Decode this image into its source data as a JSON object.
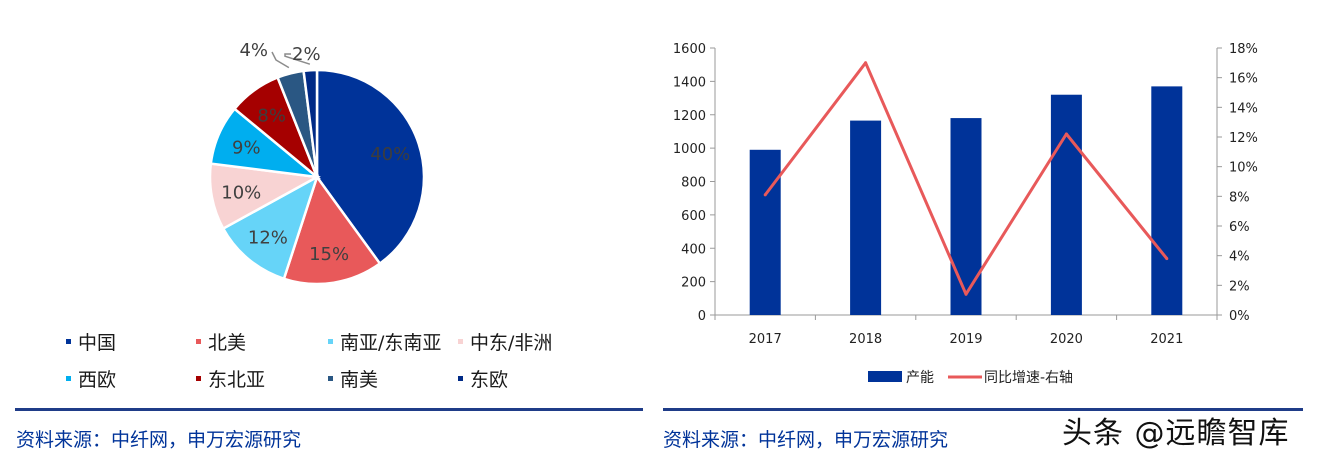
{
  "charts": {
    "left_source": "资料来源：中纤网，申万宏源研究",
    "right_source": "资料来源：中纤网，申万宏源研究",
    "watermark": "头条 @远瞻智库"
  },
  "chart_data": [
    {
      "type": "pie",
      "slices": [
        {
          "label": "中国",
          "value": 40,
          "value_label": "40%",
          "color": "#003399"
        },
        {
          "label": "北美",
          "value": 15,
          "value_label": "15%",
          "color": "#e8595a"
        },
        {
          "label": "南亚/东南亚",
          "value": 12,
          "value_label": "12%",
          "color": "#66d4f8"
        },
        {
          "label": "中东/非洲",
          "value": 10,
          "value_label": "10%",
          "color": "#f8d3d3"
        },
        {
          "label": "西欧",
          "value": 9,
          "value_label": "9%",
          "color": "#00aeef"
        },
        {
          "label": "东北亚",
          "value": 8,
          "value_label": "8%",
          "color": "#a50000"
        },
        {
          "label": "南美",
          "value": 4,
          "value_label": "4%",
          "color": "#2a5783"
        },
        {
          "label": "东欧",
          "value": 2,
          "value_label": "2%",
          "color": "#002a86"
        }
      ],
      "legend_position": "bottom"
    },
    {
      "type": "bar",
      "categories": [
        "2017",
        "2018",
        "2019",
        "2020",
        "2021"
      ],
      "series": [
        {
          "name": "产能",
          "type": "bar",
          "axis": "left",
          "color": "#003399",
          "values": [
            990,
            1165,
            1180,
            1320,
            1370
          ]
        },
        {
          "name": "同比增速-右轴",
          "type": "line",
          "axis": "right",
          "color": "#e8595a",
          "values": [
            8.1,
            17.0,
            1.4,
            12.2,
            3.8
          ]
        }
      ],
      "y_left": {
        "ylim": [
          0,
          1600
        ],
        "ticks": [
          "0",
          "200",
          "400",
          "600",
          "800",
          "1000",
          "1200",
          "1400",
          "1600"
        ]
      },
      "y_right": {
        "ylim": [
          0,
          18
        ],
        "ticks": [
          "0%",
          "2%",
          "4%",
          "6%",
          "8%",
          "10%",
          "12%",
          "14%",
          "16%",
          "18%"
        ]
      },
      "legend_position": "bottom"
    }
  ]
}
